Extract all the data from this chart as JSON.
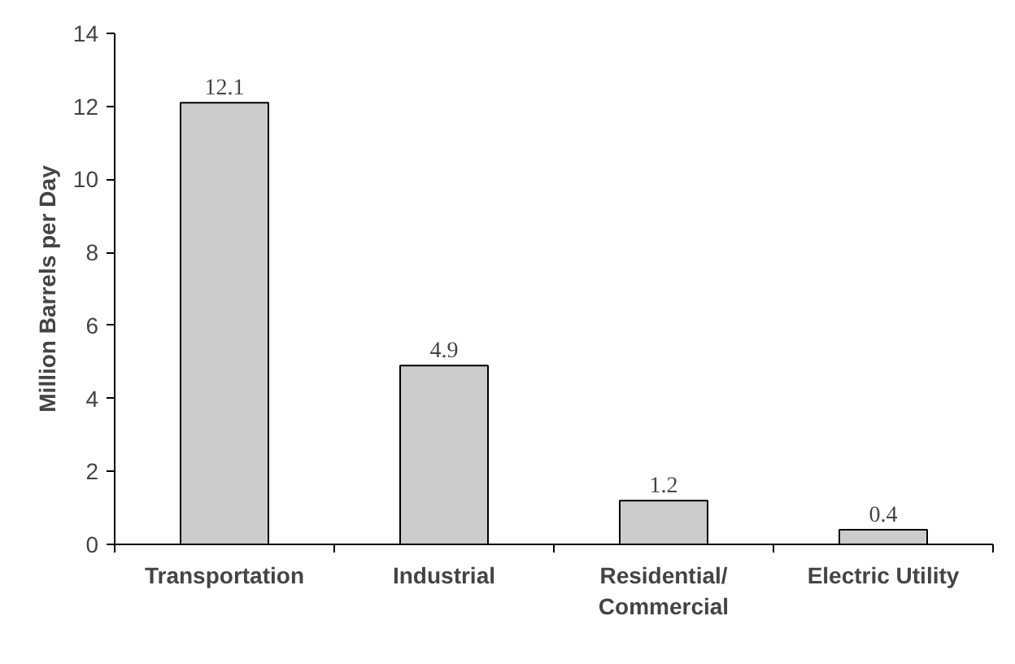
{
  "chart_data": {
    "type": "bar",
    "ylabel": "Million Barrels per Day",
    "categories": [
      "Transportation",
      "Industrial",
      "Residential/\nCommercial",
      "Electric Utility"
    ],
    "values": [
      12.1,
      4.9,
      1.2,
      0.4
    ],
    "color": "#cccccc",
    "ylim": [
      0,
      14
    ],
    "yticks": [
      0,
      2,
      4,
      6,
      8,
      10,
      12,
      14
    ],
    "grid": false,
    "data_labels": true
  }
}
